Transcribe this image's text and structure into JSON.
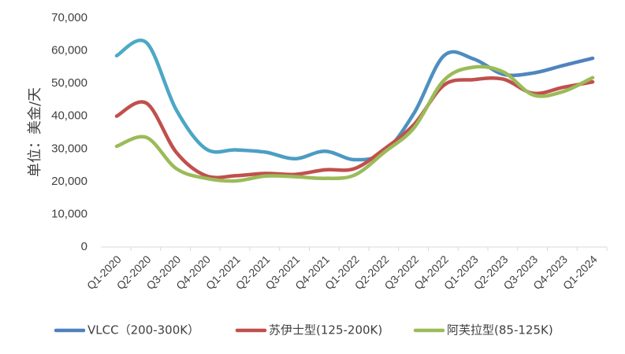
{
  "chart_data": {
    "type": "line",
    "ylabel": "单位：美金/天",
    "ylim": [
      0,
      70000
    ],
    "yticks": [
      "0",
      "10,000",
      "20,000",
      "30,000",
      "40,000",
      "50,000",
      "60,000",
      "70,000"
    ],
    "categories": [
      "Q1-2020",
      "Q2-2020",
      "Q3-2020",
      "Q4-2020",
      "Q1-2021",
      "Q2-2021",
      "Q3-2021",
      "Q4-2021",
      "Q1-2022",
      "Q2-2022",
      "Q3-2022",
      "Q4-2022",
      "Q1-2023",
      "Q2-2023",
      "Q3-2023",
      "Q4-2023",
      "Q1-2024"
    ],
    "legend_position": "bottom",
    "grid": false,
    "series": [
      {
        "name": "VLCC（200-300K）",
        "color": "#4BACC6",
        "color_end": "#4F81BD",
        "values": [
          58500,
          62500,
          42000,
          30000,
          29700,
          29000,
          27000,
          29300,
          26700,
          29000,
          41000,
          58500,
          57500,
          52800,
          53200,
          55500,
          57700
        ]
      },
      {
        "name": "苏伊士型(125-200K)",
        "color": "#C0504D",
        "values": [
          40000,
          44000,
          29000,
          21800,
          21800,
          22500,
          22200,
          23600,
          24000,
          30000,
          37500,
          49500,
          51200,
          51300,
          47000,
          48800,
          50500
        ]
      },
      {
        "name": "阿芙拉型(85-125K)",
        "color": "#9BBB59",
        "values": [
          30800,
          33500,
          24000,
          21000,
          20200,
          21700,
          21500,
          21000,
          22000,
          29000,
          36500,
          51000,
          55000,
          53500,
          46500,
          47500,
          51800
        ]
      }
    ]
  }
}
